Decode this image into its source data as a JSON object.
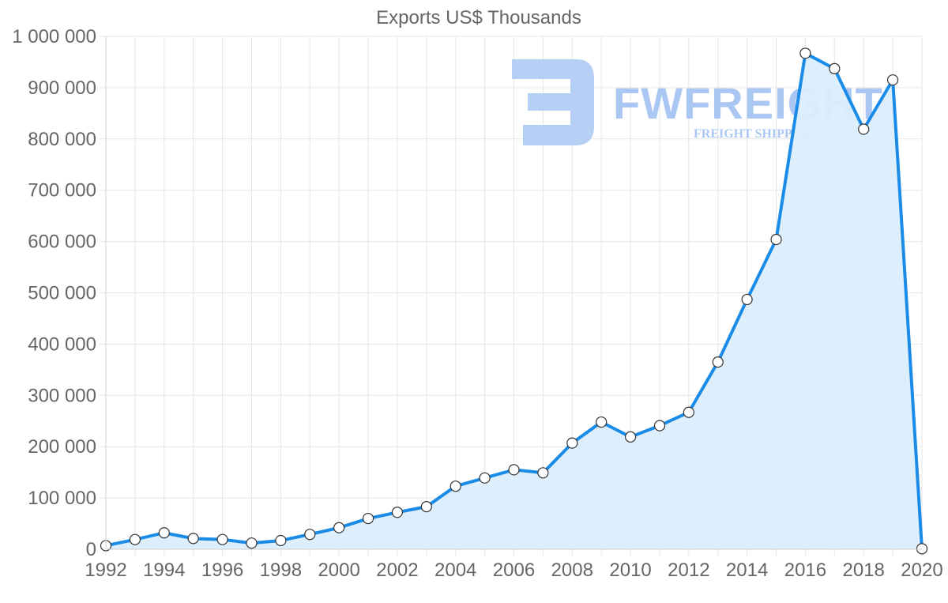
{
  "chart_data": {
    "type": "area",
    "title": "Exports US$ Thousands",
    "x": [
      1992,
      1993,
      1994,
      1995,
      1996,
      1997,
      1998,
      1999,
      2000,
      2001,
      2002,
      2003,
      2004,
      2005,
      2006,
      2007,
      2008,
      2009,
      2010,
      2011,
      2012,
      2013,
      2014,
      2015,
      2016,
      2017,
      2018,
      2019,
      2020
    ],
    "series": [
      {
        "name": "Exports",
        "values": [
          7000,
          19000,
          32000,
          21000,
          19000,
          12000,
          17000,
          29000,
          42000,
          60000,
          72000,
          83000,
          123000,
          139000,
          155000,
          149000,
          207000,
          248000,
          219000,
          241000,
          267000,
          365000,
          487000,
          604000,
          967000,
          937000,
          819000,
          915000,
          1000
        ]
      }
    ],
    "ylim": [
      0,
      1000000
    ],
    "yticks": [
      0,
      100000,
      200000,
      300000,
      400000,
      500000,
      600000,
      700000,
      800000,
      900000,
      1000000
    ],
    "ytick_labels": [
      "0",
      "100 000",
      "200 000",
      "300 000",
      "400 000",
      "500 000",
      "600 000",
      "700 000",
      "800 000",
      "900 000",
      "1 000 000"
    ],
    "xtick_labels": [
      "1992",
      "1994",
      "1996",
      "1998",
      "2000",
      "2002",
      "2004",
      "2006",
      "2008",
      "2010",
      "2012",
      "2014",
      "2016",
      "2018",
      "2020"
    ],
    "grid": true,
    "line_color": "#1a8ce8",
    "fill_color": "#dbedfc"
  },
  "watermark": {
    "brand": "FWFREIGHT",
    "tagline": "FREIGHT SHIPPING",
    "color": "#a9c7f2"
  }
}
